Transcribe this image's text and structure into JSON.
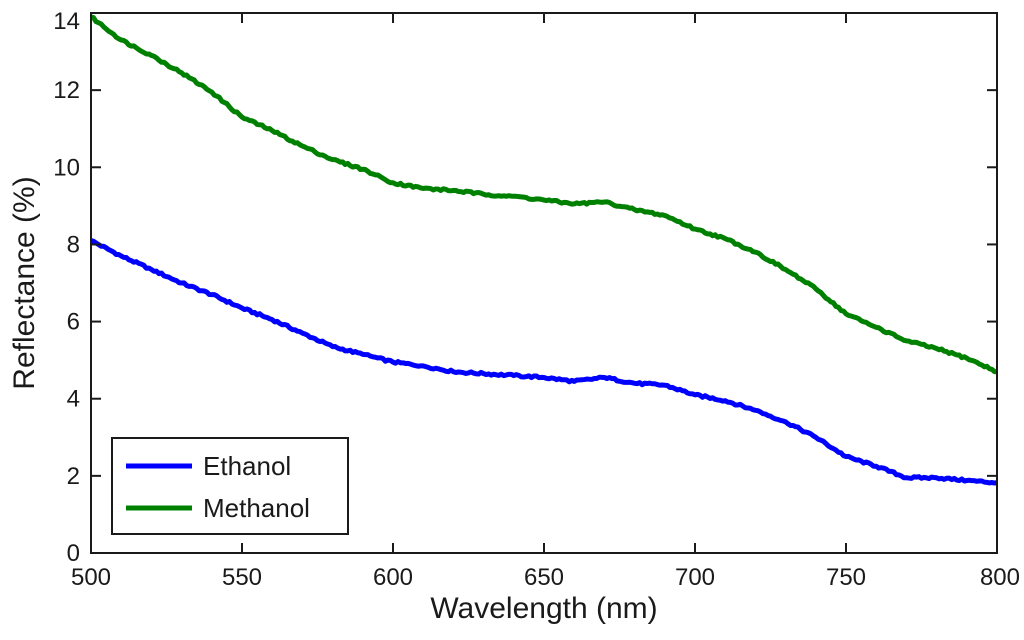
{
  "chart_data": {
    "type": "line",
    "title": "",
    "xlabel": "Wavelength (nm)",
    "ylabel": "Reflectance (%)",
    "xlim": [
      500,
      800
    ],
    "ylim": [
      0,
      14
    ],
    "xticks": [
      500,
      550,
      600,
      650,
      700,
      750,
      800
    ],
    "yticks": [
      0,
      2,
      4,
      6,
      8,
      10,
      12,
      14
    ],
    "grid": false,
    "legend_position": "bottom-left",
    "series": [
      {
        "name": "Ethanol",
        "color": "#0000ff",
        "x": [
          500,
          510,
          520,
          530,
          540,
          550,
          560,
          570,
          580,
          590,
          600,
          610,
          620,
          630,
          640,
          650,
          660,
          670,
          680,
          690,
          700,
          710,
          720,
          730,
          740,
          750,
          760,
          770,
          780,
          790,
          800
        ],
        "y": [
          8.1,
          7.7,
          7.35,
          7.0,
          6.7,
          6.35,
          6.05,
          5.7,
          5.35,
          5.15,
          4.95,
          4.85,
          4.7,
          4.65,
          4.6,
          4.55,
          4.45,
          4.55,
          4.4,
          4.35,
          4.1,
          3.95,
          3.7,
          3.4,
          3.0,
          2.5,
          2.25,
          1.95,
          1.95,
          1.88,
          1.82
        ]
      },
      {
        "name": "Methanol",
        "color": "#008000",
        "x": [
          500,
          510,
          520,
          530,
          540,
          550,
          560,
          570,
          580,
          590,
          600,
          610,
          620,
          630,
          640,
          650,
          660,
          670,
          680,
          690,
          700,
          710,
          720,
          730,
          740,
          750,
          760,
          770,
          780,
          790,
          800
        ],
        "y": [
          13.9,
          13.3,
          12.9,
          12.45,
          11.95,
          11.3,
          10.95,
          10.55,
          10.2,
          9.95,
          9.6,
          9.45,
          9.4,
          9.3,
          9.25,
          9.15,
          9.05,
          9.1,
          8.9,
          8.75,
          8.4,
          8.15,
          7.8,
          7.35,
          6.85,
          6.2,
          5.85,
          5.5,
          5.3,
          5.05,
          4.7
        ]
      }
    ]
  }
}
